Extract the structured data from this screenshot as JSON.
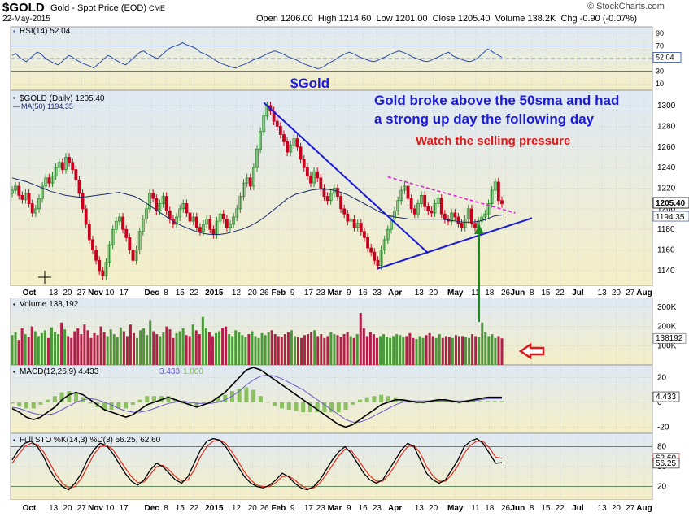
{
  "header": {
    "symbol": "$GOLD",
    "description": "Gold - Spot Price (EOD)",
    "exchange": "CME",
    "date": "22-May-2015",
    "logo": "© StockCharts.com",
    "open_label": "Open",
    "open": "1206.00",
    "high_label": "High",
    "high": "1214.60",
    "low_label": "Low",
    "low": "1201.00",
    "close_label": "Close",
    "close": "1205.40",
    "volume_label": "Volume",
    "volume": "138.2K",
    "chg_label": "Chg",
    "chg": "-0.90 (-0.07%)"
  },
  "annotations": {
    "title": "$Gold",
    "main_note": "Gold broke above the 50sma and had a strong up day the following day",
    "main_note_line1": "Gold broke above the 50sma and had",
    "main_note_line2": "a strong up day the following day",
    "sub_note": "Watch the selling pressure"
  },
  "colors": {
    "up": "#2e8b2e",
    "down": "#c8001e",
    "volume_up": "#4a9a3a",
    "volume_down": "#b0204a",
    "panel_bg_top": "#e3ebf5",
    "panel_bg_bottom": "#f3efc8",
    "trendline": "#1a1ad8",
    "resistance": "#e020d0",
    "arrow_green": "#1a8a1a",
    "arrow_red": "#e01818",
    "annotation_blue": "#1a1ad8",
    "annotation_red": "#e01818"
  },
  "chart_data": [
    {
      "type": "line",
      "panel": "rsi",
      "legend": "RSI(14) 52.04",
      "ylim": [
        0,
        100
      ],
      "yticks": [
        10,
        30,
        50,
        70,
        90
      ],
      "current": "52.04",
      "levels": [
        70,
        30
      ],
      "values": [
        55,
        58,
        52,
        48,
        45,
        50,
        55,
        60,
        58,
        52,
        48,
        45,
        42,
        40,
        45,
        50,
        55,
        52,
        48,
        45,
        42,
        40,
        38,
        35,
        40,
        45,
        50,
        55,
        52,
        48,
        45,
        42,
        40,
        45,
        50,
        55,
        60,
        62,
        58,
        55,
        52,
        50,
        55,
        60,
        65,
        68,
        70,
        72,
        75,
        72,
        70,
        68,
        65,
        60,
        58,
        55,
        52,
        48,
        45,
        42,
        40,
        38,
        36,
        35,
        38,
        40,
        42,
        45,
        48,
        50,
        52,
        55,
        58,
        60,
        62,
        60,
        58,
        55,
        52,
        50,
        48,
        45,
        42,
        40,
        38,
        36,
        34,
        35,
        38,
        42,
        45,
        48,
        52,
        55,
        58,
        60,
        58,
        55,
        52,
        50,
        48,
        46,
        45,
        47,
        50,
        52,
        55,
        58,
        60,
        62,
        60,
        58,
        55,
        52,
        50,
        48,
        46,
        45,
        47,
        50,
        52,
        55,
        58,
        60,
        55,
        52,
        50,
        48,
        46,
        45,
        47,
        50,
        55,
        60,
        65,
        62,
        58,
        55,
        52
      ]
    },
    {
      "type": "candlestick",
      "panel": "price",
      "legend_symbol": "$GOLD (Daily) 1205.40",
      "legend_ma": "MA(50) 1194.35",
      "ylim": [
        1125,
        1315
      ],
      "yticks": [
        1140,
        1160,
        1180,
        1200,
        1220,
        1240,
        1260,
        1280,
        1300
      ],
      "current_price": "1205.40",
      "current_ma": "1194.35",
      "closes": [
        1218,
        1222,
        1213,
        1209,
        1215,
        1205,
        1196,
        1200,
        1210,
        1222,
        1230,
        1225,
        1232,
        1240,
        1245,
        1238,
        1250,
        1245,
        1238,
        1228,
        1215,
        1200,
        1185,
        1170,
        1160,
        1150,
        1140,
        1135,
        1148,
        1165,
        1180,
        1188,
        1192,
        1180,
        1172,
        1160,
        1150,
        1160,
        1178,
        1190,
        1200,
        1215,
        1210,
        1198,
        1205,
        1212,
        1198,
        1190,
        1185,
        1192,
        1200,
        1205,
        1196,
        1188,
        1192,
        1182,
        1178,
        1185,
        1190,
        1180,
        1175,
        1188,
        1195,
        1190,
        1182,
        1185,
        1192,
        1200,
        1212,
        1225,
        1230,
        1222,
        1240,
        1258,
        1275,
        1290,
        1300,
        1295,
        1285,
        1280,
        1272,
        1265,
        1255,
        1262,
        1268,
        1260,
        1248,
        1240,
        1232,
        1225,
        1236,
        1230,
        1220,
        1212,
        1208,
        1215,
        1220,
        1212,
        1200,
        1195,
        1188,
        1190,
        1182,
        1186,
        1178,
        1172,
        1162,
        1158,
        1150,
        1145,
        1160,
        1170,
        1180,
        1190,
        1198,
        1208,
        1218,
        1222,
        1210,
        1200,
        1195,
        1205,
        1213,
        1202,
        1198,
        1196,
        1205,
        1210,
        1195,
        1190,
        1188,
        1196,
        1192,
        1186,
        1182,
        1190,
        1200,
        1186,
        1182,
        1188,
        1192,
        1195,
        1205,
        1218,
        1226,
        1208,
        1205
      ]
    },
    {
      "type": "line",
      "panel": "price",
      "name": "MA(50)",
      "values": [
        1230,
        1228,
        1226,
        1223,
        1220,
        1217,
        1215,
        1213,
        1212,
        1211,
        1212,
        1213,
        1214,
        1215,
        1216,
        1214,
        1212,
        1208,
        1203,
        1198,
        1193,
        1188,
        1184,
        1181,
        1178,
        1176,
        1175,
        1175,
        1176,
        1178,
        1180,
        1183,
        1187,
        1192,
        1198,
        1204,
        1210,
        1214,
        1216,
        1218,
        1219,
        1219,
        1218,
        1216,
        1213,
        1209,
        1205,
        1201,
        1197,
        1194,
        1192,
        1191,
        1190,
        1190,
        1190,
        1190,
        1190,
        1189,
        1188,
        1187,
        1187,
        1188,
        1190,
        1193,
        1194
      ]
    },
    {
      "type": "bar",
      "panel": "volume",
      "legend": "Volume 138,192",
      "ylim": [
        0,
        350000
      ],
      "yticks": [
        100000,
        200000,
        300000
      ],
      "ytick_labels": [
        "100K",
        "200K",
        "300K"
      ],
      "current": "138192",
      "values": [
        155,
        170,
        130,
        190,
        160,
        145,
        200,
        175,
        150,
        165,
        180,
        140,
        195,
        170,
        160,
        220,
        185,
        150,
        140,
        175,
        190,
        160,
        210,
        180,
        140,
        165,
        155,
        200,
        170,
        150,
        185,
        160,
        145,
        195,
        175,
        150,
        210,
        165,
        140,
        180,
        190,
        155,
        230,
        175,
        160,
        150,
        170,
        200,
        185,
        140,
        165,
        175,
        190,
        155,
        150,
        210,
        180,
        160,
        250,
        190,
        170,
        150,
        165,
        175,
        190,
        200,
        160,
        150,
        180,
        170,
        155,
        145,
        160,
        175,
        150,
        140,
        165,
        155,
        170,
        180,
        160,
        150,
        145,
        160,
        170,
        180,
        150,
        145,
        140,
        155,
        160,
        170,
        180,
        150,
        160,
        140,
        150,
        170,
        160,
        155,
        145,
        160,
        170,
        150,
        140,
        160,
        270,
        190,
        150,
        170,
        160,
        140,
        150,
        160,
        145,
        140,
        150,
        160,
        155,
        145,
        150,
        165,
        140,
        135,
        150,
        140,
        155,
        165,
        150,
        140,
        160,
        140,
        150,
        145,
        140,
        155,
        150,
        150,
        145,
        140,
        160,
        150,
        145,
        220,
        170,
        150,
        160,
        140,
        150,
        138
      ]
    },
    {
      "type": "line",
      "panel": "macd",
      "legend_macd": "MACD(12,26,9) 4.433",
      "legend_signal": "3.433",
      "legend_hist": "1.000",
      "ylim": [
        -25,
        30
      ],
      "yticks": [
        -20,
        0,
        20
      ],
      "current": "4.433",
      "macd": [
        -5,
        -8,
        -12,
        -14,
        -12,
        -8,
        -4,
        2,
        6,
        8,
        6,
        2,
        -2,
        -6,
        -8,
        -10,
        -12,
        -10,
        -6,
        -2,
        0,
        2,
        4,
        2,
        0,
        -2,
        -4,
        -2,
        0,
        4,
        8,
        14,
        20,
        26,
        28,
        26,
        22,
        18,
        14,
        10,
        6,
        2,
        -2,
        -6,
        -10,
        -14,
        -18,
        -20,
        -18,
        -14,
        -10,
        -6,
        -2,
        0,
        2,
        2,
        1,
        0,
        0,
        1,
        2,
        2,
        1,
        0,
        1,
        2,
        3,
        4,
        4,
        4
      ],
      "signal": [
        -4,
        -5,
        -7,
        -9,
        -10,
        -10,
        -9,
        -6,
        -3,
        0,
        2,
        3,
        2,
        0,
        -2,
        -5,
        -7,
        -8,
        -8,
        -7,
        -5,
        -3,
        -1,
        0,
        1,
        0,
        -1,
        -1,
        -1,
        0,
        2,
        5,
        9,
        14,
        18,
        21,
        22,
        21,
        19,
        16,
        13,
        10,
        6,
        2,
        -2,
        -6,
        -10,
        -14,
        -16,
        -16,
        -14,
        -11,
        -8,
        -5,
        -2,
        0,
        1,
        1,
        1,
        1,
        1,
        1,
        1,
        1,
        1,
        1,
        2,
        3,
        3,
        3
      ]
    },
    {
      "type": "line",
      "panel": "stochastics",
      "legend": "Full STO %K(14,3) %D(3) 56.25, 62.60",
      "ylim": [
        0,
        100
      ],
      "yticks": [
        20,
        50,
        80
      ],
      "levels": [
        80,
        20
      ],
      "k": [
        60,
        75,
        85,
        88,
        80,
        65,
        45,
        30,
        20,
        15,
        25,
        40,
        60,
        75,
        85,
        82,
        70,
        55,
        40,
        28,
        22,
        30,
        45,
        55,
        50,
        40,
        30,
        25,
        35,
        55,
        75,
        88,
        92,
        90,
        80,
        65,
        50,
        35,
        25,
        20,
        18,
        22,
        30,
        40,
        35,
        25,
        18,
        15,
        20,
        30,
        45,
        60,
        72,
        80,
        70,
        55,
        40,
        30,
        25,
        30,
        45,
        60,
        75,
        85,
        80,
        60,
        40,
        30,
        25,
        30,
        45,
        60,
        80,
        88,
        92,
        85,
        70,
        55,
        56
      ],
      "d": [
        55,
        68,
        80,
        85,
        83,
        72,
        55,
        38,
        25,
        18,
        20,
        32,
        50,
        68,
        80,
        82,
        76,
        62,
        48,
        35,
        26,
        27,
        38,
        50,
        52,
        45,
        35,
        28,
        30,
        45,
        65,
        80,
        88,
        90,
        85,
        72,
        58,
        42,
        30,
        22,
        20,
        20,
        26,
        35,
        36,
        30,
        22,
        17,
        18,
        25,
        38,
        52,
        66,
        76,
        74,
        62,
        48,
        36,
        28,
        28,
        38,
        52,
        68,
        80,
        82,
        70,
        50,
        36,
        28,
        28,
        38,
        52,
        70,
        82,
        88,
        88,
        78,
        64,
        62.6
      ],
      "current_k": "56.25",
      "current_d": "62.60"
    },
    {
      "type": "axis",
      "xticks": [
        "Oct",
        "13",
        "20",
        "27",
        "Nov",
        "10",
        "17",
        "Dec",
        "8",
        "15",
        "22",
        "2015",
        "12",
        "20",
        "26",
        "Feb",
        "9",
        "17",
        "23",
        "Mar",
        "9",
        "16",
        "23",
        "Apr",
        "13",
        "20",
        "May",
        "11",
        "18",
        "26",
        "Jun",
        "8",
        "15",
        "22",
        "Jul",
        "13",
        "20",
        "27",
        "Aug"
      ],
      "xtick_positions_data": [
        "2014-10-01",
        "2014-10-13",
        "2014-10-20",
        "2014-10-27",
        "2014-11-03",
        "2014-11-10",
        "2014-11-17",
        "2014-12-01",
        "2014-12-08",
        "2014-12-15",
        "2014-12-22",
        "2015-01-01",
        "2015-01-12",
        "2015-01-20",
        "2015-01-26",
        "2015-02-02",
        "2015-02-09",
        "2015-02-17",
        "2015-02-23",
        "2015-03-02",
        "2015-03-09",
        "2015-03-16",
        "2015-03-23",
        "2015-04-01",
        "2015-04-13",
        "2015-04-20",
        "2015-05-01",
        "2015-05-11",
        "2015-05-18",
        "2015-05-26",
        "2015-06-01",
        "2015-06-08",
        "2015-06-15",
        "2015-06-22",
        "2015-07-01",
        "2015-07-13",
        "2015-07-20",
        "2015-07-27",
        "2015-08-03"
      ]
    }
  ]
}
